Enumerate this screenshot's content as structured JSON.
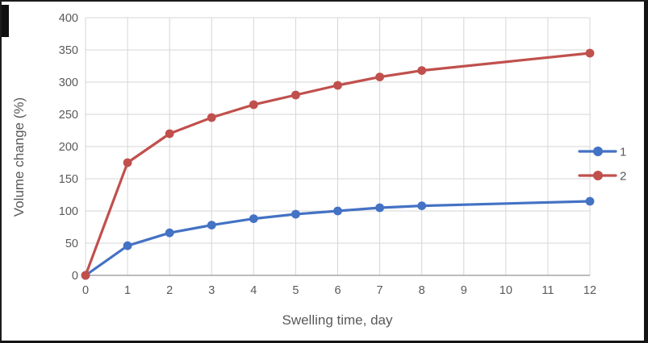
{
  "chart_data": {
    "type": "line",
    "title": "",
    "xlabel": "Swelling time, day",
    "ylabel": "Volume change (%)",
    "x": [
      0,
      1,
      2,
      3,
      4,
      5,
      6,
      7,
      8,
      12
    ],
    "series": [
      {
        "name": "1",
        "color": "#4472C4",
        "values": [
          0,
          46,
          66,
          78,
          88,
          95,
          100,
          105,
          108,
          115
        ]
      },
      {
        "name": "2",
        "color": "#C0504D",
        "values": [
          0,
          175,
          220,
          245,
          265,
          280,
          295,
          308,
          318,
          345
        ]
      }
    ],
    "xlim": [
      0,
      12
    ],
    "ylim": [
      0,
      400
    ],
    "x_ticks": [
      0,
      1,
      2,
      3,
      4,
      5,
      6,
      7,
      8,
      9,
      10,
      11,
      12
    ],
    "y_ticks": [
      0,
      50,
      100,
      150,
      200,
      250,
      300,
      350,
      400
    ],
    "grid": true,
    "legend_position": "right",
    "marker": "circle",
    "colors": {
      "gridline": "#D6D6D6",
      "axis_line": "#A6A6A6",
      "tick_label": "#595959",
      "axis_title": "#595959",
      "legend_label": "#595959"
    }
  }
}
